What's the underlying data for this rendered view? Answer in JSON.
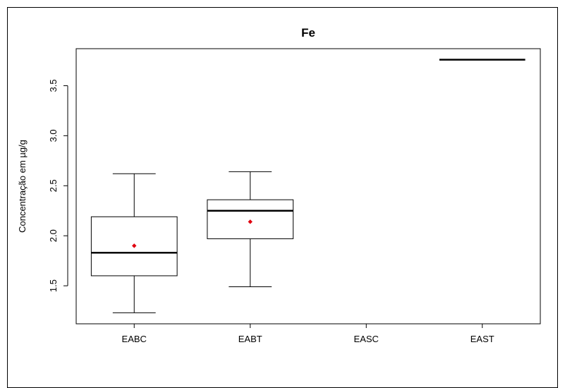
{
  "chart_data": {
    "type": "boxplot",
    "title": "Fe",
    "xlabel": "",
    "ylabel": "Concentração em µg/g",
    "ylim": [
      1.12,
      3.87
    ],
    "yticks": [
      "1.5",
      "2.0",
      "2.5",
      "3.0",
      "3.5"
    ],
    "categories": [
      "EABC",
      "EABT",
      "EASC",
      "EAST"
    ],
    "boxes": [
      {
        "category": "EABC",
        "min": 1.23,
        "q1": 1.6,
        "median": 1.83,
        "q3": 2.19,
        "max": 2.62,
        "mean": 1.9
      },
      {
        "category": "EABT",
        "min": 1.49,
        "q1": 1.97,
        "median": 2.25,
        "q3": 2.36,
        "max": 2.64,
        "mean": 2.14
      },
      {
        "category": "EASC"
      },
      {
        "category": "EAST",
        "min": 3.76,
        "q1": 3.76,
        "median": 3.76,
        "q3": 3.76,
        "max": 3.76
      }
    ],
    "mean_marker_color": "#e0000f",
    "grid": false
  }
}
